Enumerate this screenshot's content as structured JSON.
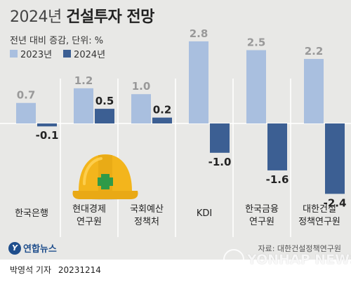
{
  "title_year": "2024년",
  "title_main": "건설투자 전망",
  "subtitle": "전년 대비 증감, 단위: %",
  "legend": [
    {
      "label": "2023년",
      "color": "#a9bfdf"
    },
    {
      "label": "2024년",
      "color": "#3c5f93"
    }
  ],
  "source": "자료: 대한건설정책연구원",
  "agency_logo": "연합뉴스",
  "watermark": "YONHAP NEWS",
  "reporter": "박영석 기자",
  "date": "20231214",
  "colors": {
    "series_2023": "#a9bfdf",
    "series_2024": "#3c5f93",
    "background": "#e8e8e6",
    "helmet": "#f3b51c",
    "cross": "#2f9a48"
  },
  "illustration": "hard-hat-icon",
  "chart_data": {
    "type": "bar",
    "categories": [
      [
        "한국은행"
      ],
      [
        "현대경제",
        "연구원"
      ],
      [
        "국회예산",
        "정책처"
      ],
      [
        "KDI"
      ],
      [
        "한국금융",
        "연구원"
      ],
      [
        "대한건설",
        "정책연구원"
      ]
    ],
    "series": [
      {
        "name": "2023년",
        "values": [
          0.7,
          1.2,
          1.0,
          2.8,
          2.5,
          2.2
        ]
      },
      {
        "name": "2024년",
        "values": [
          -0.1,
          0.5,
          0.2,
          -1.0,
          -1.6,
          -2.4
        ]
      }
    ],
    "value_labels": [
      [
        "0.7",
        "1.2",
        "1.0",
        "2.8",
        "2.5",
        "2.2"
      ],
      [
        "-0.1",
        "0.5",
        "0.2",
        "-1.0",
        "-1.6",
        "-2.4"
      ]
    ],
    "title": "2024년 건설투자 전망",
    "xlabel": "",
    "ylabel": "",
    "ylim": [
      -2.4,
      2.8
    ],
    "grid": false,
    "legend_position": "top-left"
  }
}
